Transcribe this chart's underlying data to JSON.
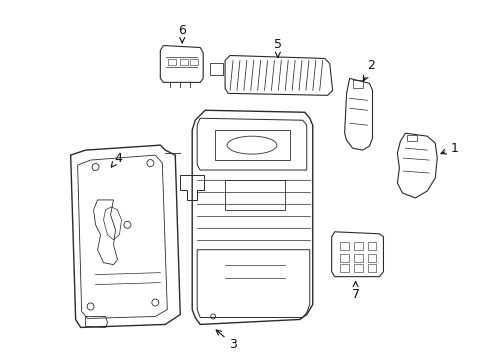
{
  "background_color": "#ffffff",
  "line_color": "#2a2a2a",
  "label_color": "#111111",
  "fig_width": 4.89,
  "fig_height": 3.6,
  "dpi": 100,
  "label_fontsize": 9
}
